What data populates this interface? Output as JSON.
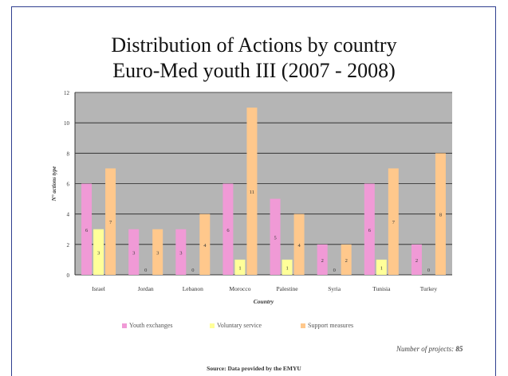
{
  "chart_data": {
    "type": "bar",
    "title": "Distribution of Actions by country",
    "subtitle": "Euro-Med youth III (2007 - 2008)",
    "xlabel": "Country",
    "ylabel": "N° actions type",
    "ylim": [
      0,
      12
    ],
    "yticks": [
      0,
      2,
      4,
      6,
      8,
      10,
      12
    ],
    "grid": true,
    "legend_position": "bottom",
    "categories": [
      "Israel",
      "Jordan",
      "Lebanon",
      "Morocco",
      "Palestine",
      "Syria",
      "Tunisia",
      "Turkey"
    ],
    "series": [
      {
        "name": "Youth exchanges",
        "color": "#f09ad6",
        "values": [
          6,
          3,
          3,
          6,
          5,
          2,
          6,
          2
        ]
      },
      {
        "name": "Voluntary service",
        "color": "#ffff99",
        "values": [
          3,
          0,
          0,
          1,
          1,
          0,
          1,
          0
        ]
      },
      {
        "name": "Support measures",
        "color": "#ffc88c",
        "values": [
          7,
          3,
          4,
          11,
          4,
          2,
          7,
          8
        ]
      }
    ]
  },
  "footer": {
    "projects_label": "Number of projects:",
    "projects_value": "85",
    "source": "Source: Data provided by the EMYU"
  }
}
